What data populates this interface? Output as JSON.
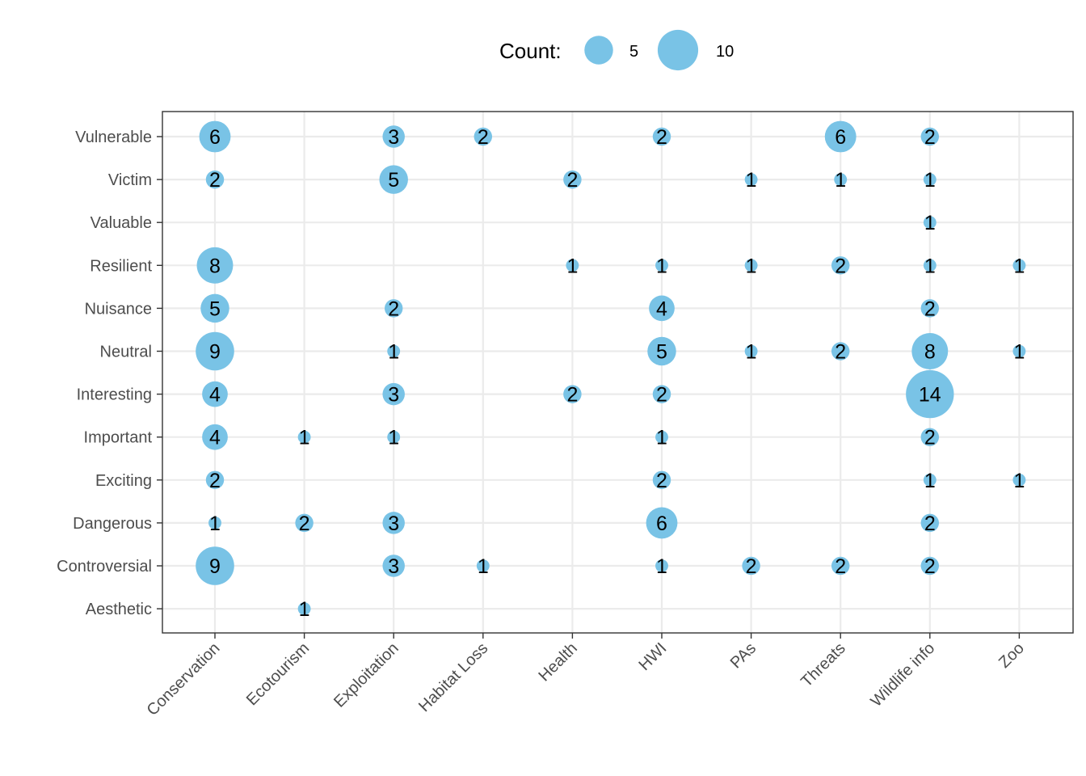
{
  "chart_data": {
    "type": "scatter",
    "subtype": "bubble",
    "title": "",
    "xlabel": "",
    "ylabel": "",
    "x_categories": [
      "Conservation",
      "Ecotourism",
      "Exploitation",
      "Habitat Loss",
      "Health",
      "HWI",
      "PAs",
      "Threats",
      "Wildlife info",
      "Zoo"
    ],
    "y_categories": [
      "Aesthetic",
      "Controversial",
      "Dangerous",
      "Exciting",
      "Important",
      "Interesting",
      "Neutral",
      "Nuisance",
      "Resilient",
      "Valuable",
      "Victim",
      "Vulnerable"
    ],
    "points": [
      {
        "x": "Conservation",
        "y": "Vulnerable",
        "count": 6
      },
      {
        "x": "Exploitation",
        "y": "Vulnerable",
        "count": 3
      },
      {
        "x": "Habitat Loss",
        "y": "Vulnerable",
        "count": 2
      },
      {
        "x": "HWI",
        "y": "Vulnerable",
        "count": 2
      },
      {
        "x": "Threats",
        "y": "Vulnerable",
        "count": 6
      },
      {
        "x": "Wildlife info",
        "y": "Vulnerable",
        "count": 2
      },
      {
        "x": "Conservation",
        "y": "Victim",
        "count": 2
      },
      {
        "x": "Exploitation",
        "y": "Victim",
        "count": 5
      },
      {
        "x": "Health",
        "y": "Victim",
        "count": 2
      },
      {
        "x": "PAs",
        "y": "Victim",
        "count": 1
      },
      {
        "x": "Threats",
        "y": "Victim",
        "count": 1
      },
      {
        "x": "Wildlife info",
        "y": "Victim",
        "count": 1
      },
      {
        "x": "Wildlife info",
        "y": "Valuable",
        "count": 1
      },
      {
        "x": "Conservation",
        "y": "Resilient",
        "count": 8
      },
      {
        "x": "Health",
        "y": "Resilient",
        "count": 1
      },
      {
        "x": "HWI",
        "y": "Resilient",
        "count": 1
      },
      {
        "x": "PAs",
        "y": "Resilient",
        "count": 1
      },
      {
        "x": "Threats",
        "y": "Resilient",
        "count": 2
      },
      {
        "x": "Wildlife info",
        "y": "Resilient",
        "count": 1
      },
      {
        "x": "Zoo",
        "y": "Resilient",
        "count": 1
      },
      {
        "x": "Conservation",
        "y": "Nuisance",
        "count": 5
      },
      {
        "x": "Exploitation",
        "y": "Nuisance",
        "count": 2
      },
      {
        "x": "HWI",
        "y": "Nuisance",
        "count": 4
      },
      {
        "x": "Wildlife info",
        "y": "Nuisance",
        "count": 2
      },
      {
        "x": "Conservation",
        "y": "Neutral",
        "count": 9
      },
      {
        "x": "Exploitation",
        "y": "Neutral",
        "count": 1
      },
      {
        "x": "HWI",
        "y": "Neutral",
        "count": 5
      },
      {
        "x": "PAs",
        "y": "Neutral",
        "count": 1
      },
      {
        "x": "Threats",
        "y": "Neutral",
        "count": 2
      },
      {
        "x": "Wildlife info",
        "y": "Neutral",
        "count": 8
      },
      {
        "x": "Zoo",
        "y": "Neutral",
        "count": 1
      },
      {
        "x": "Conservation",
        "y": "Interesting",
        "count": 4
      },
      {
        "x": "Exploitation",
        "y": "Interesting",
        "count": 3
      },
      {
        "x": "Health",
        "y": "Interesting",
        "count": 2
      },
      {
        "x": "HWI",
        "y": "Interesting",
        "count": 2
      },
      {
        "x": "Wildlife info",
        "y": "Interesting",
        "count": 14
      },
      {
        "x": "Conservation",
        "y": "Important",
        "count": 4
      },
      {
        "x": "Ecotourism",
        "y": "Important",
        "count": 1
      },
      {
        "x": "Exploitation",
        "y": "Important",
        "count": 1
      },
      {
        "x": "HWI",
        "y": "Important",
        "count": 1
      },
      {
        "x": "Wildlife info",
        "y": "Important",
        "count": 2
      },
      {
        "x": "Conservation",
        "y": "Exciting",
        "count": 2
      },
      {
        "x": "HWI",
        "y": "Exciting",
        "count": 2
      },
      {
        "x": "Wildlife info",
        "y": "Exciting",
        "count": 1
      },
      {
        "x": "Zoo",
        "y": "Exciting",
        "count": 1
      },
      {
        "x": "Conservation",
        "y": "Dangerous",
        "count": 1
      },
      {
        "x": "Ecotourism",
        "y": "Dangerous",
        "count": 2
      },
      {
        "x": "Exploitation",
        "y": "Dangerous",
        "count": 3
      },
      {
        "x": "HWI",
        "y": "Dangerous",
        "count": 6
      },
      {
        "x": "Wildlife info",
        "y": "Dangerous",
        "count": 2
      },
      {
        "x": "Conservation",
        "y": "Controversial",
        "count": 9
      },
      {
        "x": "Exploitation",
        "y": "Controversial",
        "count": 3
      },
      {
        "x": "Habitat Loss",
        "y": "Controversial",
        "count": 1
      },
      {
        "x": "HWI",
        "y": "Controversial",
        "count": 1
      },
      {
        "x": "PAs",
        "y": "Controversial",
        "count": 2
      },
      {
        "x": "Threats",
        "y": "Controversial",
        "count": 2
      },
      {
        "x": "Wildlife info",
        "y": "Controversial",
        "count": 2
      },
      {
        "x": "Ecotourism",
        "y": "Aesthetic",
        "count": 1
      }
    ],
    "legend": {
      "title": "Count:",
      "placement": "top",
      "entries": [
        {
          "label": "5",
          "value": 5
        },
        {
          "label": "10",
          "value": 10
        }
      ]
    },
    "bubble_color": "#79C3E6",
    "grid": true
  }
}
